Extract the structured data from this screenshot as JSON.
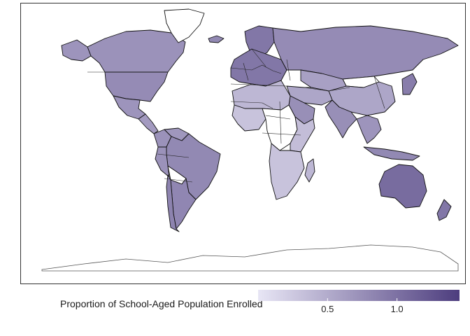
{
  "legend": {
    "title": "Proportion of School-Aged Population Enrolled",
    "ticks": [
      {
        "value": 0.5,
        "label": "0.5"
      },
      {
        "value": 1.0,
        "label": "1.0"
      }
    ],
    "range": [
      0.0,
      1.45
    ],
    "color_low": "#e8e6f5",
    "color_high": "#4d3d7e"
  },
  "map": {
    "projection": "equirectangular",
    "no_data_color": "#ffffff",
    "regions": [
      {
        "name": "Canada",
        "value": 0.72
      },
      {
        "name": "Greenland",
        "value": null
      },
      {
        "name": "Alaska",
        "value": 0.7
      },
      {
        "name": "United States",
        "value": 0.78
      },
      {
        "name": "Mexico",
        "value": 0.7
      },
      {
        "name": "Central America",
        "value": 0.65
      },
      {
        "name": "Colombia",
        "value": 0.72
      },
      {
        "name": "Venezuela",
        "value": 0.68
      },
      {
        "name": "Brazil",
        "value": 0.8
      },
      {
        "name": "Peru",
        "value": 0.72
      },
      {
        "name": "Bolivia",
        "value": null
      },
      {
        "name": "Argentina",
        "value": 0.82
      },
      {
        "name": "Chile",
        "value": 0.85
      },
      {
        "name": "Iceland",
        "value": 0.8
      },
      {
        "name": "Scandinavia",
        "value": 0.95
      },
      {
        "name": "Western Europe",
        "value": 0.95
      },
      {
        "name": "Russia",
        "value": 0.78
      },
      {
        "name": "Mongolia",
        "value": null
      },
      {
        "name": "China",
        "value": 0.55
      },
      {
        "name": "Kazakhstan",
        "value": 0.6
      },
      {
        "name": "Middle East",
        "value": 0.55
      },
      {
        "name": "Saudi Arabia",
        "value": 0.75
      },
      {
        "name": "India",
        "value": 0.75
      },
      {
        "name": "Southeast Asia",
        "value": 0.7
      },
      {
        "name": "Indonesia",
        "value": 0.8
      },
      {
        "name": "Japan",
        "value": 0.9
      },
      {
        "name": "North Africa",
        "value": 0.4
      },
      {
        "name": "West Africa",
        "value": 0.3
      },
      {
        "name": "Central Africa",
        "value": null
      },
      {
        "name": "East Africa",
        "value": 0.35
      },
      {
        "name": "Southern Africa",
        "value": 0.3
      },
      {
        "name": "Madagascar",
        "value": 0.4
      },
      {
        "name": "Australia",
        "value": 1.05
      },
      {
        "name": "New Zealand",
        "value": 0.95
      },
      {
        "name": "Antarctica",
        "value": null
      }
    ]
  }
}
